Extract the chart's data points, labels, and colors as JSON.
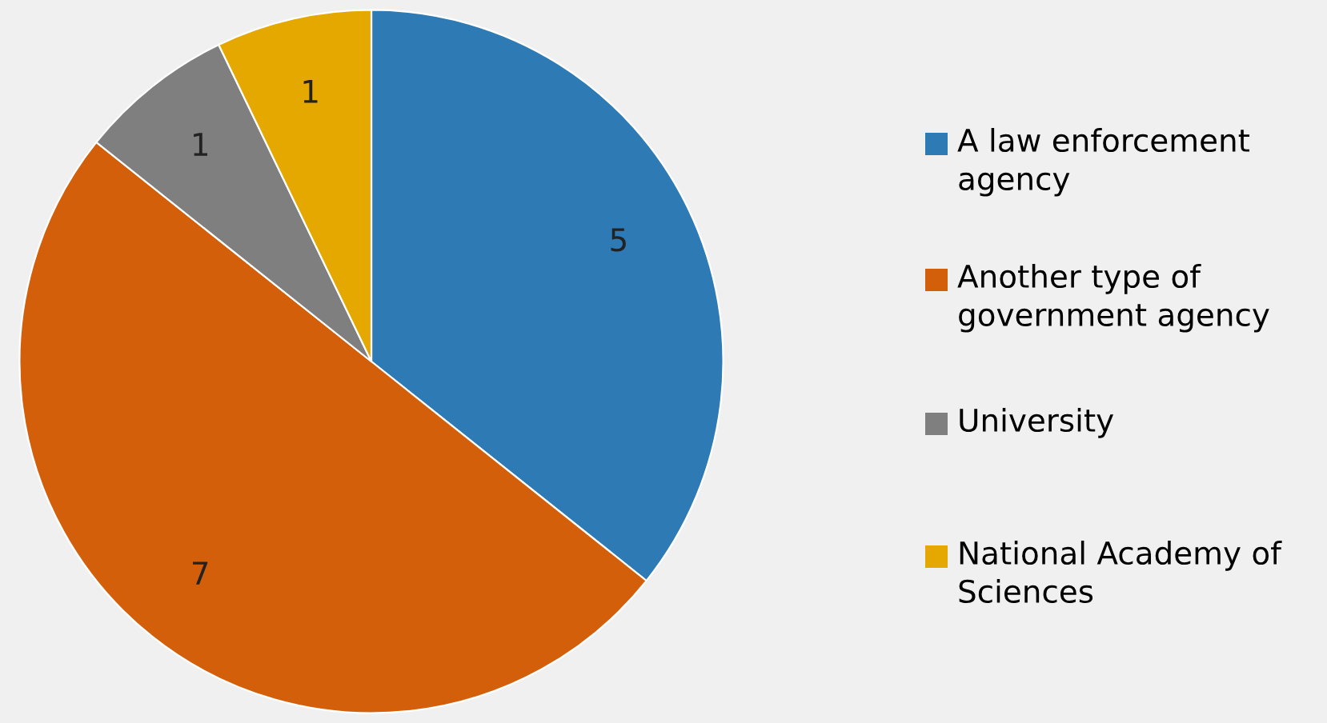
{
  "chart_data": {
    "type": "pie",
    "categories": [
      "A law enforcement agency",
      "Another type of government agency",
      "University",
      "National Academy of Sciences"
    ],
    "values": [
      5,
      7,
      1,
      1
    ],
    "colors": [
      "#2e7ab5",
      "#d35f0a",
      "#7f7f7f",
      "#e5a800"
    ],
    "data_labels": true,
    "legend": "right"
  }
}
